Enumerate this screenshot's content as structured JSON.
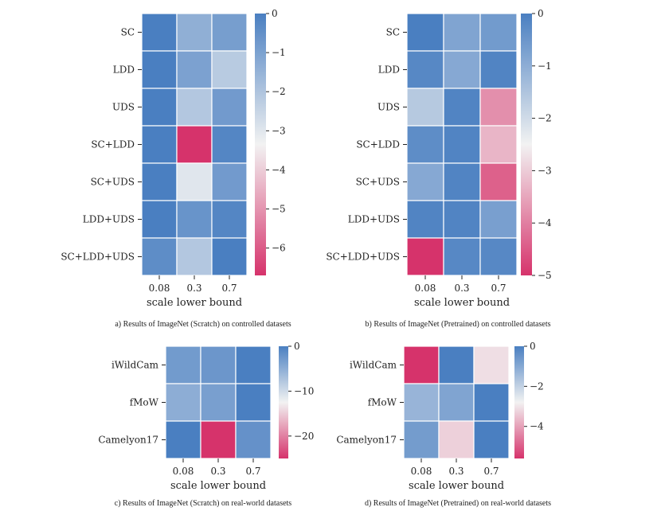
{
  "colors": {
    "low": "#d6336b",
    "mid": "#f2f2f2",
    "high": "#4a7fc1",
    "cell_border": "#ffffff"
  },
  "chart_data": [
    {
      "type": "heatmap",
      "panel": "a",
      "caption": "a) Results of ImageNet (Scratch) on controlled datasets",
      "xlabel": "scale lower bound",
      "x_ticks": [
        "0.08",
        "0.3",
        "0.7"
      ],
      "y_ticks": [
        "SC",
        "LDD",
        "UDS",
        "SC+LDD",
        "SC+UDS",
        "LDD+UDS",
        "SC+LDD+UDS"
      ],
      "values": [
        [
          0.0,
          -1.4,
          -0.9
        ],
        [
          0.0,
          -1.0,
          -2.2
        ],
        [
          0.0,
          -2.1,
          -0.8
        ],
        [
          0.0,
          -6.7,
          -0.2
        ],
        [
          0.0,
          -3.0,
          -0.8
        ],
        [
          0.0,
          -0.6,
          -0.2
        ],
        [
          -0.4,
          -2.1,
          0.0
        ]
      ],
      "colorbar": {
        "vmin": -6.7,
        "vmax": 0,
        "ticks": [
          0,
          -1,
          -2,
          -3,
          -4,
          -5,
          -6
        ],
        "tick_labels": [
          "0",
          "−1",
          "−2",
          "−3",
          "−4",
          "−5",
          "−6"
        ]
      }
    },
    {
      "type": "heatmap",
      "panel": "b",
      "caption": "b) Results of ImageNet (Pretrained) on controlled datasets",
      "xlabel": "scale lower bound",
      "x_ticks": [
        "0.08",
        "0.3",
        "0.7"
      ],
      "y_ticks": [
        "SC",
        "LDD",
        "UDS",
        "SC+LDD",
        "SC+UDS",
        "LDD+UDS",
        "SC+LDD+UDS"
      ],
      "values": [
        [
          0.0,
          -0.8,
          -0.6
        ],
        [
          -0.2,
          -0.9,
          -0.1
        ],
        [
          -1.6,
          -0.1,
          -3.8
        ],
        [
          -0.3,
          -0.1,
          -3.3
        ],
        [
          -0.9,
          -0.1,
          -4.4
        ],
        [
          -0.1,
          -0.1,
          -0.7
        ],
        [
          -5.0,
          -0.2,
          -0.2
        ]
      ],
      "colorbar": {
        "vmin": -5.0,
        "vmax": 0,
        "ticks": [
          0,
          -1,
          -2,
          -3,
          -4,
          -5
        ],
        "tick_labels": [
          "0",
          "−1",
          "−2",
          "−3",
          "−4",
          "−5"
        ]
      }
    },
    {
      "type": "heatmap",
      "panel": "c",
      "caption": "c) Results of ImageNet (Scratch) on real-world datasets",
      "xlabel": "scale lower bound",
      "x_ticks": [
        "0.08",
        "0.3",
        "0.7"
      ],
      "y_ticks": [
        "iWildCam",
        "fMoW",
        "Camelyon17"
      ],
      "values": [
        [
          -3.0,
          -2.5,
          0.0
        ],
        [
          -5.0,
          -3.5,
          0.0
        ],
        [
          0.0,
          -25.0,
          -2.0
        ]
      ],
      "colorbar": {
        "vmin": -25,
        "vmax": 0,
        "ticks": [
          0,
          -10,
          -20
        ],
        "tick_labels": [
          "0",
          "−10",
          "−20"
        ]
      }
    },
    {
      "type": "heatmap",
      "panel": "d",
      "caption": "d) Results of ImageNet (Pretrained) on real-world datasets",
      "xlabel": "scale lower bound",
      "x_ticks": [
        "0.08",
        "0.3",
        "0.7"
      ],
      "y_ticks": [
        "iWildCam",
        "fMoW",
        "Camelyon17"
      ],
      "values": [
        [
          -5.6,
          0.0,
          -3.1
        ],
        [
          -1.3,
          -0.9,
          0.0
        ],
        [
          -0.7,
          -3.3,
          0.0
        ]
      ],
      "colorbar": {
        "vmin": -5.6,
        "vmax": 0,
        "ticks": [
          0,
          -2,
          -4
        ],
        "tick_labels": [
          "0",
          "−2",
          "−4"
        ]
      }
    }
  ]
}
